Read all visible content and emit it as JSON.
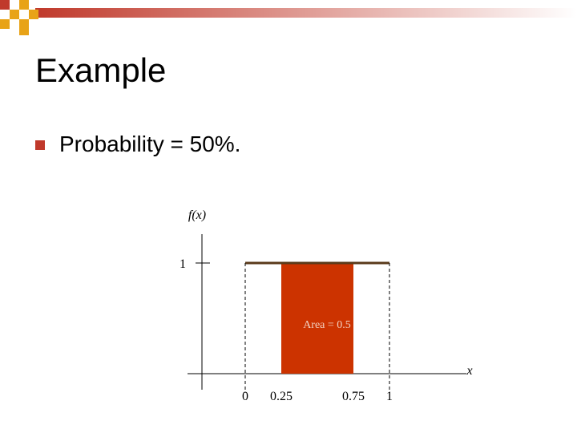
{
  "slide": {
    "title": "Example",
    "bullet_text": "Probability = 50%."
  },
  "colors": {
    "accent": "#c0392b",
    "fill": "#cc3300",
    "bar_gradient_start": "#c0392b",
    "bar_gradient_end": "#ffffff",
    "square_orange": "#e8a317"
  },
  "icons": {
    "bullet": "square-bullet-icon",
    "decoration": "checker-squares-icon"
  },
  "chart_data": {
    "type": "area",
    "ylabel": "f(x)",
    "xlabel": "x",
    "x_ticks": [
      0,
      0.25,
      0.75,
      1
    ],
    "x_tick_labels": [
      "0",
      "0.25",
      "0.75",
      "1"
    ],
    "y_ticks": [
      1
    ],
    "y_tick_labels": [
      "1"
    ],
    "density": {
      "x": [
        0,
        1
      ],
      "y": 1
    },
    "shaded_region": {
      "x": [
        0.25,
        0.75
      ],
      "area_label": "Area = 0.5"
    },
    "xlim": [
      -0.3,
      1.55
    ],
    "ylim": [
      0,
      1.3
    ],
    "grid": false
  }
}
